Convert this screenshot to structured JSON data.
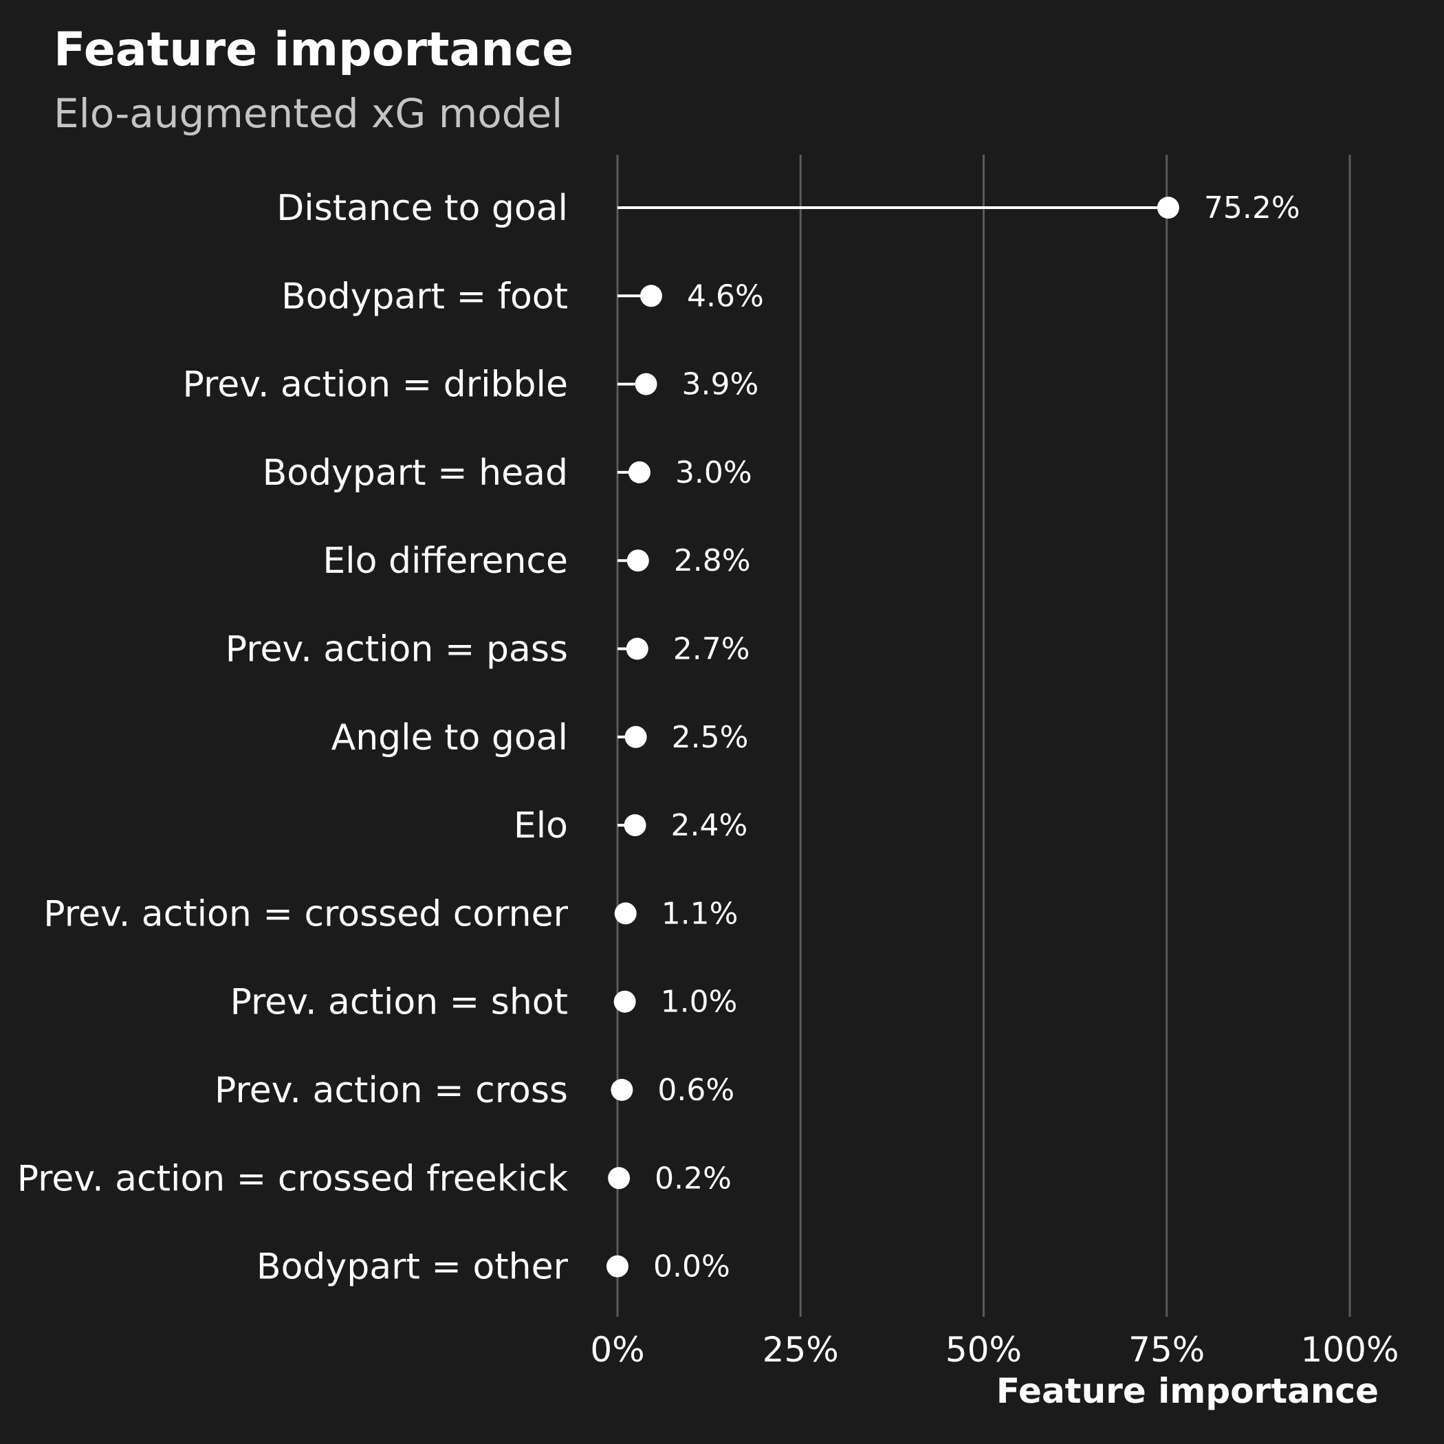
{
  "chart_data": {
    "type": "lollipop",
    "title": "Feature importance",
    "subtitle": "Elo-augmented xG model",
    "xlabel": "Feature importance",
    "ylabel": "",
    "xlim": [
      0,
      100
    ],
    "x_ticks": [
      0,
      25,
      50,
      75,
      100
    ],
    "x_tick_labels": [
      "0%",
      "25%",
      "50%",
      "75%",
      "100%"
    ],
    "grid": "vertical major gridlines",
    "legend": "none",
    "categories": [
      "Distance to goal",
      "Bodypart = foot",
      "Prev. action = dribble",
      "Bodypart = head",
      "Elo difference",
      "Prev. action = pass",
      "Angle to goal",
      "Elo",
      "Prev. action = crossed corner",
      "Prev. action = shot",
      "Prev. action = cross",
      "Prev. action = crossed freekick",
      "Bodypart = other"
    ],
    "values": [
      75.2,
      4.6,
      3.9,
      3.0,
      2.8,
      2.7,
      2.5,
      2.4,
      1.1,
      1.0,
      0.6,
      0.2,
      0.0
    ],
    "value_labels": [
      "75.2%",
      "4.6%",
      "3.9%",
      "3.0%",
      "2.8%",
      "2.7%",
      "2.5%",
      "2.4%",
      "1.1%",
      "1.0%",
      "0.6%",
      "0.2%",
      "0.0%"
    ],
    "colors": {
      "background": "#1b1b1b",
      "gridline": "#5a5a5a",
      "mark": "#ffffff",
      "text": "#ffffff",
      "subtitle": "#c4c4c4"
    }
  }
}
